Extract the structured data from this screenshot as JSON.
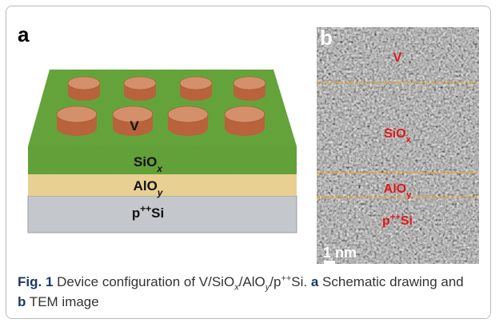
{
  "panel_a": {
    "letter": "a",
    "labels": [
      [
        {
          "text": "V"
        }
      ],
      [
        {
          "text": "SiO"
        },
        {
          "text": "x",
          "style": "sub-italic"
        }
      ],
      [
        {
          "text": "AlO"
        },
        {
          "text": "y",
          "style": "sub-italic"
        }
      ],
      [
        {
          "text": "p"
        },
        {
          "text": "++",
          "style": "sup"
        },
        {
          "text": "Si"
        }
      ]
    ]
  },
  "panel_b": {
    "letter": "b",
    "labels": [
      [
        {
          "text": "V"
        }
      ],
      [
        {
          "text": "SiO"
        },
        {
          "text": "x",
          "style": "sub"
        }
      ],
      [
        {
          "text": "AlO"
        },
        {
          "text": "y",
          "style": "sub"
        }
      ],
      [
        {
          "text": "p"
        },
        {
          "text": "++",
          "style": "sup"
        },
        {
          "text": "Si"
        }
      ]
    ],
    "scale_bar": "1 nm"
  },
  "caption": [
    {
      "text": "Fig. 1",
      "style": "bold"
    },
    {
      "text": " Device configuration of V/SiO"
    },
    {
      "text": "x",
      "style": "sub-italic"
    },
    {
      "text": "/AlO"
    },
    {
      "text": "y",
      "style": "sub-italic"
    },
    {
      "text": "/p"
    },
    {
      "text": "++",
      "style": "sup"
    },
    {
      "text": "Si. "
    },
    {
      "text": "a",
      "style": "bold"
    },
    {
      "text": " Schematic drawing and "
    },
    {
      "text": "b",
      "style": "bold"
    },
    {
      "text": " TEM image"
    }
  ]
}
